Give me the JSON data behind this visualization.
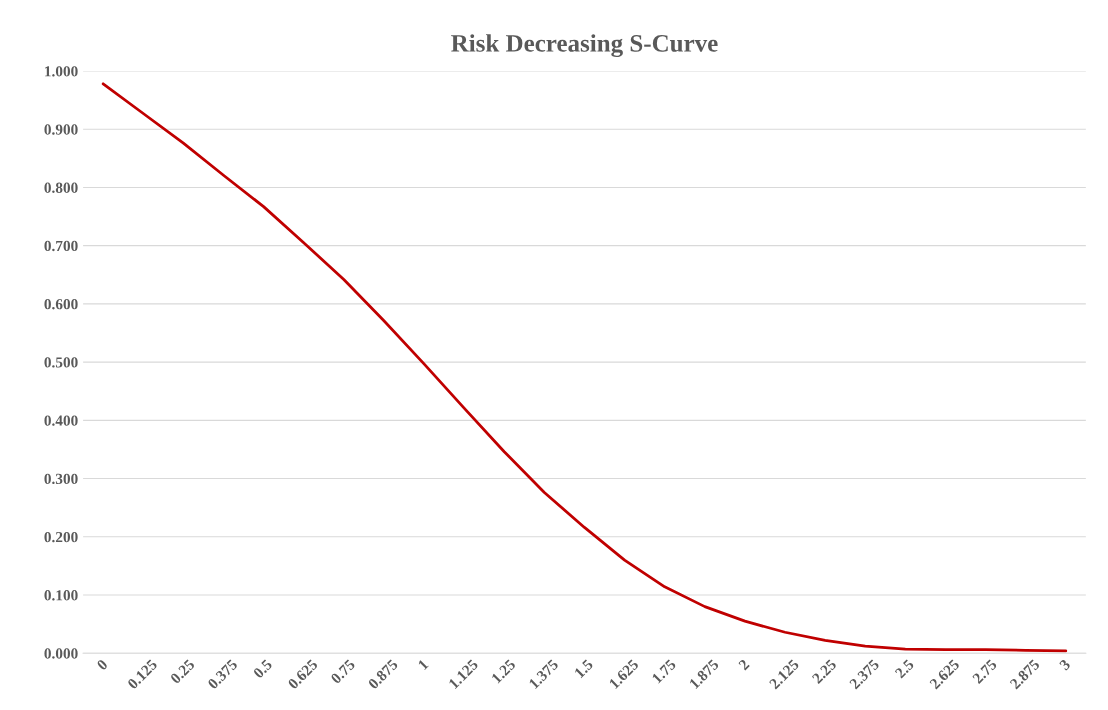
{
  "chart_data": {
    "type": "line",
    "title": "Risk Decreasing S-Curve",
    "categories": [
      "0",
      "0.125",
      "0.25",
      "0.375",
      "0.5",
      "0.625",
      "0.75",
      "0.875",
      "1",
      "1.125",
      "1.25",
      "1.375",
      "1.5",
      "1.625",
      "1.75",
      "1.875",
      "2",
      "2.125",
      "2.25",
      "2.375",
      "2.5",
      "2.625",
      "2.75",
      "2.875",
      "3"
    ],
    "series": [
      {
        "color": "#c00000",
        "values": [
          0.978,
          0.927,
          0.876,
          0.821,
          0.767,
          0.705,
          0.642,
          0.571,
          0.497,
          0.421,
          0.346,
          0.276,
          0.216,
          0.16,
          0.114,
          0.08,
          0.055,
          0.036,
          0.022,
          0.012,
          0.007,
          0.006,
          0.006,
          0.005,
          0.004
        ]
      }
    ],
    "ylim": [
      0,
      1
    ],
    "yticks": [
      {
        "value": 0,
        "label": "0.000"
      },
      {
        "value": 0.1,
        "label": "0.100"
      },
      {
        "value": 0.2,
        "label": "0.200"
      },
      {
        "value": 0.3,
        "label": "0.300"
      },
      {
        "value": 0.4,
        "label": "0.400"
      },
      {
        "value": 0.5,
        "label": "0.500"
      },
      {
        "value": 0.6,
        "label": "0.600"
      },
      {
        "value": 0.7,
        "label": "0.700"
      },
      {
        "value": 0.8,
        "label": "0.800"
      },
      {
        "value": 0.9,
        "label": "0.900"
      },
      {
        "value": 1,
        "label": "1.000"
      }
    ],
    "grid": "y",
    "marker": "none",
    "line_style": "solid"
  }
}
